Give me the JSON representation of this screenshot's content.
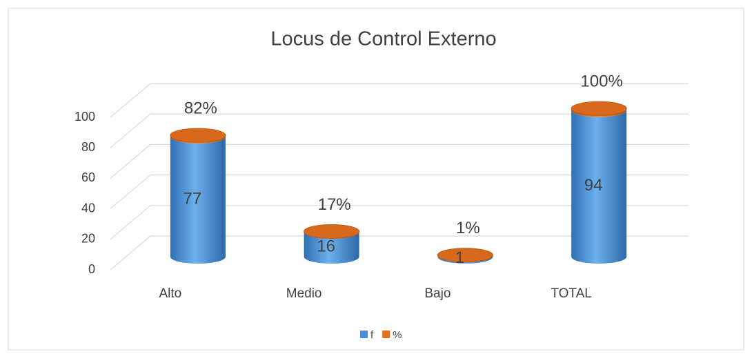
{
  "chart_data": {
    "type": "cylinder",
    "title": "Locus de Control Externo",
    "categories": [
      "Alto",
      "Medio",
      "Bajo",
      "TOTAL"
    ],
    "series": [
      {
        "name": "f",
        "color": "#4a90d9",
        "values": [
          77,
          16,
          1,
          94
        ]
      },
      {
        "name": "%",
        "color": "#e07020",
        "values": [
          0.82,
          0.17,
          0.01,
          1
        ],
        "value_labels": [
          "82%",
          "17%",
          "1%",
          "100%"
        ]
      }
    ],
    "ylim": [
      0,
      100
    ],
    "yticks": [
      0,
      20,
      40,
      60,
      80,
      100
    ],
    "grid": true,
    "stacked": true,
    "legend": "bottom"
  }
}
